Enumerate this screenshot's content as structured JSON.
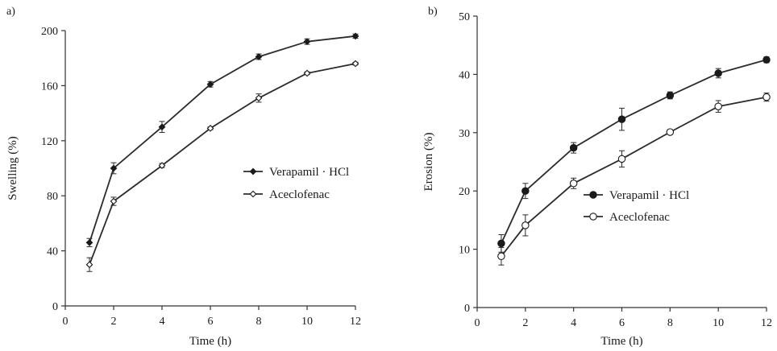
{
  "chart_data": [
    {
      "type": "line",
      "panel_label": "a)",
      "xlabel": "Time (h)",
      "ylabel": "Swelling (%)",
      "xlim": [
        0,
        12
      ],
      "ylim": [
        0,
        200
      ],
      "x_ticks": [
        0,
        2,
        4,
        6,
        8,
        10,
        12
      ],
      "y_ticks": [
        0,
        40,
        80,
        120,
        160,
        200
      ],
      "legend_position": "center-right",
      "series": [
        {
          "name": "Verapamil · HCl",
          "marker": "filled",
          "x": [
            1,
            2,
            4,
            6,
            8,
            10,
            12
          ],
          "y": [
            46,
            100,
            130,
            161,
            181,
            192,
            196
          ],
          "error": [
            3,
            4,
            4,
            2,
            2,
            2,
            1.5
          ]
        },
        {
          "name": "Aceclofenac",
          "marker": "open",
          "x": [
            1,
            2,
            4,
            6,
            8,
            10,
            12
          ],
          "y": [
            30,
            76,
            102,
            129,
            151,
            169,
            176
          ],
          "error": [
            5,
            3,
            1.5,
            1,
            3,
            1,
            1
          ]
        }
      ]
    },
    {
      "type": "line",
      "panel_label": "b)",
      "xlabel": "Time (h)",
      "ylabel": "Erosion (%)",
      "xlim": [
        0,
        12
      ],
      "ylim": [
        0,
        50
      ],
      "x_ticks": [
        0,
        2,
        4,
        6,
        8,
        10,
        12
      ],
      "y_ticks": [
        0,
        10,
        20,
        30,
        40,
        50
      ],
      "legend_position": "center-right",
      "series": [
        {
          "name": "Verapamil · HCl",
          "marker": "filled",
          "x": [
            1,
            2,
            4,
            6,
            8,
            10,
            12
          ],
          "y": [
            11,
            20,
            27.4,
            32.3,
            36.4,
            40.2,
            42.5
          ],
          "error": [
            1.5,
            1.3,
            0.9,
            1.9,
            0.6,
            0.8,
            0.5
          ]
        },
        {
          "name": "Aceclofenac",
          "marker": "open",
          "x": [
            1,
            2,
            4,
            6,
            8,
            10,
            12
          ],
          "y": [
            8.8,
            14.1,
            21.3,
            25.5,
            30.1,
            34.5,
            36.1
          ],
          "error": [
            1.5,
            1.8,
            0.9,
            1.4,
            0.4,
            1.0,
            0.7
          ]
        }
      ]
    }
  ]
}
